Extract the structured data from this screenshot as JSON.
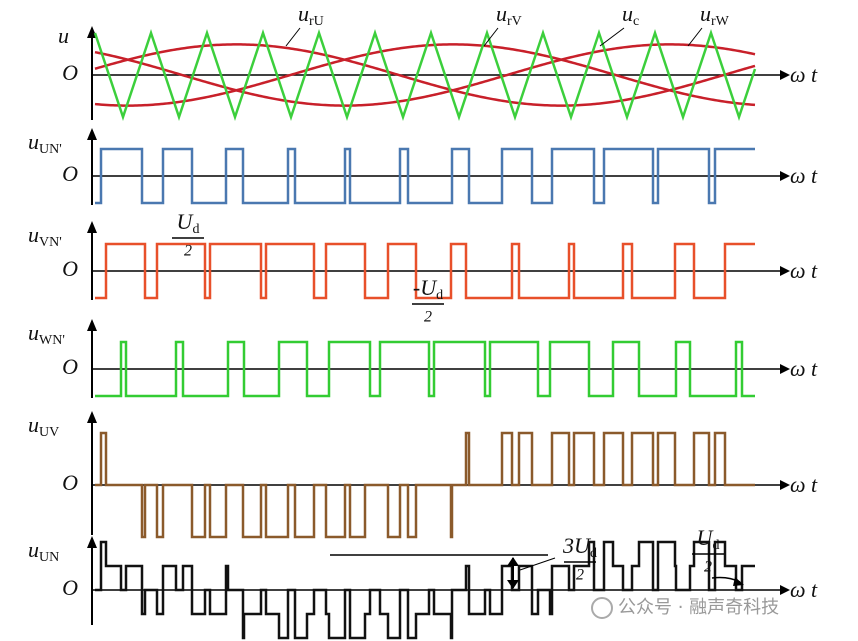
{
  "top_panel": {
    "axis_label": "u",
    "origin": "O",
    "time_axis": "ω t",
    "curves": [
      {
        "name": "u",
        "sub": "rU"
      },
      {
        "name": "u",
        "sub": "rV"
      },
      {
        "name": "u",
        "sub": "c"
      },
      {
        "name": "u",
        "sub": "rW"
      }
    ]
  },
  "panels": [
    {
      "name": "u",
      "sub": "UN'",
      "origin": "O",
      "time_axis": "ω t"
    },
    {
      "name": "u",
      "sub": "VN'",
      "origin": "O",
      "time_axis": "ω t"
    },
    {
      "name": "u",
      "sub": "WN'",
      "origin": "O",
      "time_axis": "ω t"
    },
    {
      "name": "u",
      "sub": "UV",
      "origin": "O",
      "time_axis": "ω t"
    },
    {
      "name": "u",
      "sub": "UN",
      "origin": "O",
      "time_axis": "ω t"
    }
  ],
  "annotations": [
    {
      "num": "U",
      "sub": "d",
      "den": "2"
    },
    {
      "num": "-U",
      "sub": "d",
      "den": "2"
    },
    {
      "num": "3U",
      "sub": "d",
      "den": "2"
    },
    {
      "num": "U",
      "sub": "d",
      "den": "2"
    }
  ],
  "watermark": "公众号 · 融声奇科技"
}
